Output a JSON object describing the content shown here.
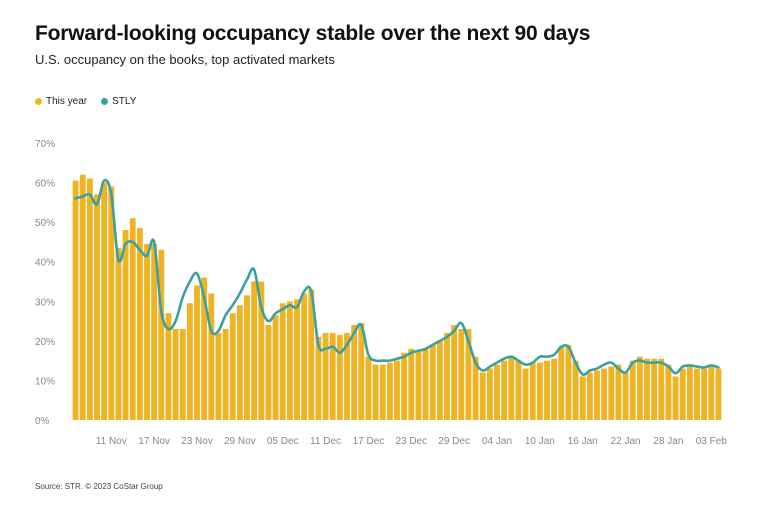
{
  "title": "Forward-looking occupancy stable over the next 90 days",
  "subtitle": "U.S. occupancy on the books, top activated markets",
  "source": "Source: STR. © 2023 CoStar Group",
  "legend": [
    {
      "name": "This year",
      "color": "#F0B323"
    },
    {
      "name": "STLY",
      "color": "#3DA0A0"
    }
  ],
  "chart_data": {
    "type": "bar",
    "y_ticks": [
      "0%",
      "10%",
      "20%",
      "30%",
      "40%",
      "50%",
      "60%",
      "70%"
    ],
    "ylim": [
      0,
      70
    ],
    "x_ticks": [
      "11 Nov",
      "17 Nov",
      "23 Nov",
      "29 Nov",
      "05 Dec",
      "11 Dec",
      "17 Dec",
      "23 Dec",
      "29 Dec",
      "04 Jan",
      "10 Jan",
      "16 Jan",
      "22 Jan",
      "28 Jan",
      "03 Feb"
    ],
    "x_tick_index": [
      5,
      11,
      17,
      23,
      29,
      35,
      41,
      47,
      53,
      59,
      65,
      71,
      77,
      83,
      89
    ],
    "grid": false,
    "legend_position": "top-left",
    "series": [
      {
        "name": "This year",
        "type": "bar",
        "color": "#F0B323",
        "values": [
          60.5,
          62,
          61,
          57,
          60,
          59,
          43.5,
          48,
          51,
          48.5,
          44.5,
          44.5,
          43,
          27,
          23,
          23,
          29.5,
          34,
          36,
          32,
          22,
          23,
          27,
          29,
          31.5,
          35,
          35,
          24,
          26.5,
          29.5,
          30,
          30.5,
          32,
          33,
          21,
          22,
          22,
          21.5,
          22,
          24,
          24.5,
          16,
          14,
          14,
          14.5,
          15,
          17,
          18,
          17.5,
          18,
          19,
          20,
          22,
          24,
          23,
          23,
          16,
          12,
          13,
          14,
          15,
          16,
          15,
          13,
          14.5,
          14.5,
          15,
          15.5,
          18.5,
          19,
          15,
          11,
          12,
          12.5,
          13,
          13.5,
          14,
          12,
          15,
          16,
          15.5,
          15.5,
          15.5,
          14,
          11,
          13,
          13.5,
          13,
          13,
          13.5,
          13
        ]
      },
      {
        "name": "STLY",
        "type": "line",
        "color": "#3DA0A0",
        "values": [
          56,
          56.5,
          57,
          54.5,
          60.5,
          57,
          40.5,
          44.5,
          45,
          43,
          41.5,
          45,
          27.5,
          23,
          25,
          31,
          35,
          37,
          31,
          22.5,
          22.5,
          26.5,
          29,
          32,
          35.5,
          38,
          28.5,
          25,
          27,
          28,
          29,
          28.5,
          32.5,
          32.5,
          19,
          18,
          18.5,
          17,
          19,
          22,
          24,
          16.5,
          15,
          15,
          15,
          15.5,
          16,
          17,
          17.5,
          18,
          19,
          20,
          21,
          22.5,
          24.5,
          20,
          14.5,
          12.5,
          13.5,
          14.5,
          15.5,
          16,
          15,
          14,
          14.5,
          16,
          16,
          16.5,
          18.5,
          18.5,
          14.5,
          11.5,
          12.5,
          13,
          14,
          14.5,
          13,
          12,
          14.5,
          15,
          14.5,
          14.5,
          14.5,
          13.5,
          11.8,
          13.5,
          13.8,
          13.5,
          13.3,
          13.8,
          13.3
        ]
      }
    ]
  }
}
